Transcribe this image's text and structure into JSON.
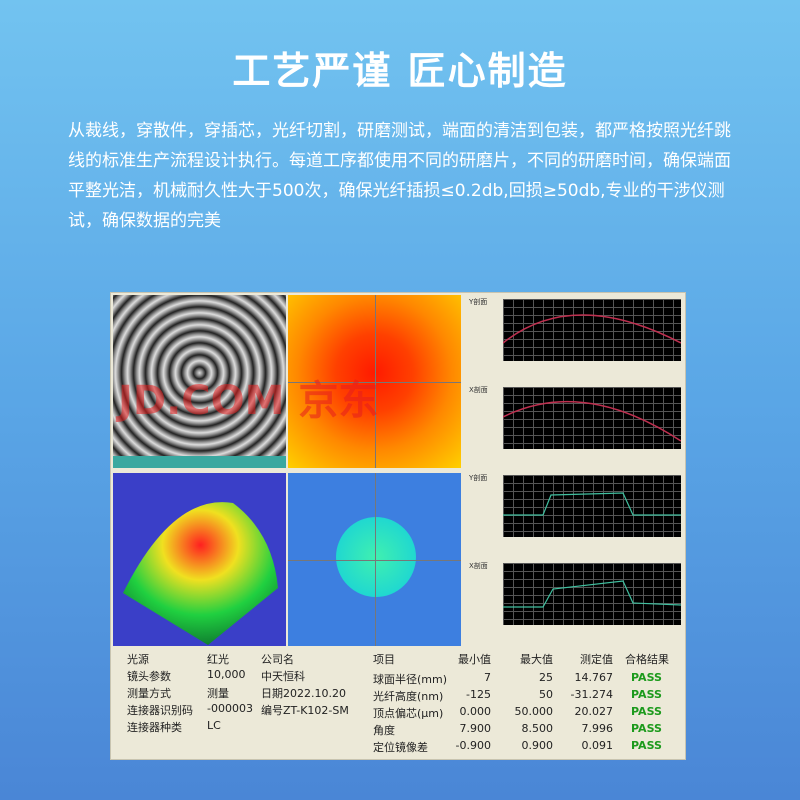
{
  "title": "工艺严谨 匠心制造",
  "description": "从裁线，穿散件，穿插芯，光纤切割，研磨测试，端面的清洁到包装，都严格按照光纤跳线的标准生产流程设计执行。每道工序都使用不同的研磨片，不同的研磨时间，确保端面平整光洁，机械耐久性大于500次，确保光纤插损≤0.2db,回损≥50db,专业的干涉仪测试，确保数据的完美",
  "watermark": "JD.COM 京东",
  "charts": [
    {
      "label": "Y剖面"
    },
    {
      "label": "X剖面"
    },
    {
      "label": "Y剖面"
    },
    {
      "label": "X剖面"
    }
  ],
  "info": [
    [
      "光源",
      "红光",
      "公司名"
    ],
    [
      "镜头参数",
      "10,000",
      "中天恒科"
    ],
    [
      "测量方式",
      "测量",
      "日期2022.10.20"
    ],
    [
      "连接器识别码",
      "-000003",
      "编号ZT-K102-SM"
    ],
    [
      "连接器种类",
      "LC",
      ""
    ]
  ],
  "results_header": [
    "项目",
    "最小值",
    "最大值",
    "测定值",
    "合格结果"
  ],
  "results": [
    [
      "球面半径(mm)",
      "7",
      "25",
      "14.767",
      "PASS"
    ],
    [
      "光纤高度(nm)",
      "-125",
      "50",
      "-31.274",
      "PASS"
    ],
    [
      "顶点偏芯(μm)",
      "0.000",
      "50.000",
      "20.027",
      "PASS"
    ],
    [
      "角度",
      "7.900",
      "8.500",
      "7.996",
      "PASS"
    ],
    [
      "定位镜像差",
      "-0.900",
      "0.900",
      "0.091",
      "PASS"
    ]
  ],
  "colors": {
    "pass": "#1c9a1c",
    "panel": "#ece9d8"
  }
}
